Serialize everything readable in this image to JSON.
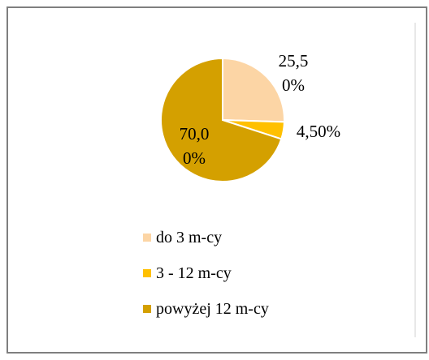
{
  "chart_data": {
    "type": "pie",
    "categories": [
      "do 3 m-cy",
      "3 - 12 m-cy",
      "powyżej 12 m-cy"
    ],
    "values": [
      25.5,
      4.5,
      70
    ],
    "value_labels": [
      "25,50%",
      "4,50%",
      "70,00%"
    ],
    "colors": [
      "#fcd5a5",
      "#ffc000",
      "#d4a000"
    ],
    "legend": "bottom"
  }
}
